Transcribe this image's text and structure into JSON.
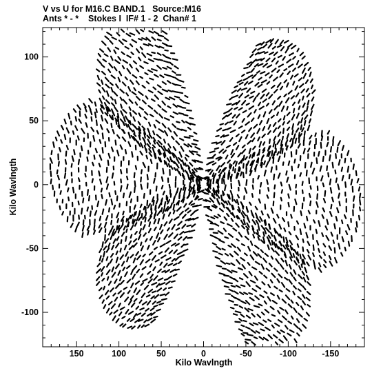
{
  "header": {
    "line1": "V vs U for M16.C BAND.1   Source:M16",
    "line2": "Ants * - *    Stokes I  IF# 1 - 2  Chan# 1"
  },
  "chart_data": {
    "type": "scatter",
    "title": "V vs U for M16.C BAND.1   Source:M16",
    "subtitle": "Ants * - *    Stokes I  IF# 1 - 2  Chan# 1",
    "xlabel": "Kilo Wavlngth",
    "ylabel": "Kilo Wavlngth",
    "xlim": [
      190,
      -190
    ],
    "ylim": [
      -127,
      123
    ],
    "x_reversed": true,
    "x_ticks": [
      150,
      100,
      50,
      0,
      -50,
      -100,
      -150
    ],
    "x_tick_labels": [
      "150",
      "100",
      "50",
      "0",
      "-50",
      "-100",
      "-150"
    ],
    "y_ticks": [
      100,
      50,
      0,
      -50,
      -100
    ],
    "y_tick_labels": [
      "100",
      "50",
      "0",
      "-50",
      "-100"
    ],
    "grid": false,
    "marker_color": "#000000",
    "arm_endpoints": [
      {
        "u": 110,
        "v": 120
      },
      {
        "u": -120,
        "v": 97
      },
      {
        "u": -185,
        "v": -17
      },
      {
        "u": -110,
        "v": -120
      },
      {
        "u": 115,
        "v": -97
      },
      {
        "u": 180,
        "v": 17
      }
    ]
  }
}
